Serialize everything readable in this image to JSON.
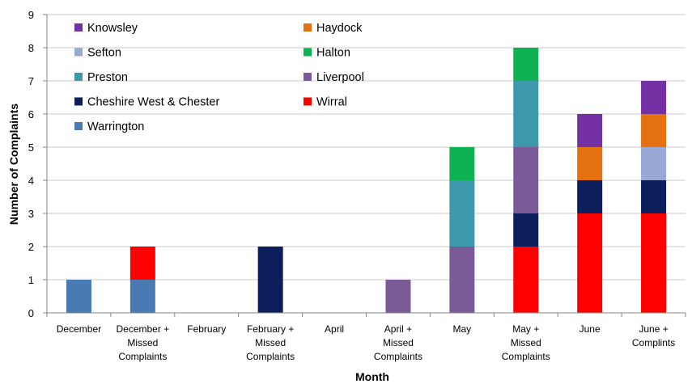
{
  "chart_data": {
    "type": "bar",
    "stacked": true,
    "xlabel": "Month",
    "ylabel": "Number of Complaints",
    "ylim": [
      0,
      9
    ],
    "yticks": [
      0,
      1,
      2,
      3,
      4,
      5,
      6,
      7,
      8,
      9
    ],
    "grid": true,
    "legend_position": "top-left (inside plot)",
    "categories": [
      [
        "December"
      ],
      [
        "December +",
        "Missed",
        "Complaints"
      ],
      [
        "February"
      ],
      [
        "February +",
        "Missed",
        "Complaints"
      ],
      [
        "April"
      ],
      [
        "April +",
        "Missed",
        "Complaints"
      ],
      [
        "May"
      ],
      [
        "May +",
        "Missed",
        "Complaints"
      ],
      [
        "June"
      ],
      [
        "June +",
        "Complints"
      ]
    ],
    "series": [
      {
        "name": "Warrington",
        "color": "#4a7ab3",
        "values": [
          1,
          1,
          0,
          0,
          0,
          0,
          0,
          0,
          0,
          0
        ]
      },
      {
        "name": "Wirral",
        "color": "#fe0000",
        "values": [
          0,
          1,
          0,
          0,
          0,
          0,
          0,
          2,
          3,
          3
        ]
      },
      {
        "name": "Cheshire West & Chester",
        "color": "#0c1f5c",
        "values": [
          0,
          0,
          0,
          2,
          0,
          0,
          0,
          1,
          1,
          1
        ]
      },
      {
        "name": "Liverpool",
        "color": "#7a5a97",
        "values": [
          0,
          0,
          0,
          0,
          0,
          1,
          2,
          2,
          0,
          0
        ]
      },
      {
        "name": "Preston",
        "color": "#3d98ac",
        "values": [
          0,
          0,
          0,
          0,
          0,
          0,
          2,
          2,
          0,
          0
        ]
      },
      {
        "name": "Halton",
        "color": "#0fb252",
        "values": [
          0,
          0,
          0,
          0,
          0,
          0,
          1,
          1,
          0,
          0
        ]
      },
      {
        "name": "Sefton",
        "color": "#98a9d6",
        "values": [
          0,
          0,
          0,
          0,
          0,
          0,
          0,
          0,
          0,
          1
        ]
      },
      {
        "name": "Haydock",
        "color": "#e4700f",
        "values": [
          0,
          0,
          0,
          0,
          0,
          0,
          0,
          0,
          1,
          1
        ]
      },
      {
        "name": "Knowsley",
        "color": "#7431a4",
        "values": [
          0,
          0,
          0,
          0,
          0,
          0,
          0,
          0,
          1,
          1
        ]
      }
    ],
    "legend_order": [
      "Knowsley",
      "Haydock",
      "Sefton",
      "Halton",
      "Preston",
      "Liverpool",
      "Cheshire West & Chester",
      "Wirral",
      "Warrington"
    ]
  }
}
